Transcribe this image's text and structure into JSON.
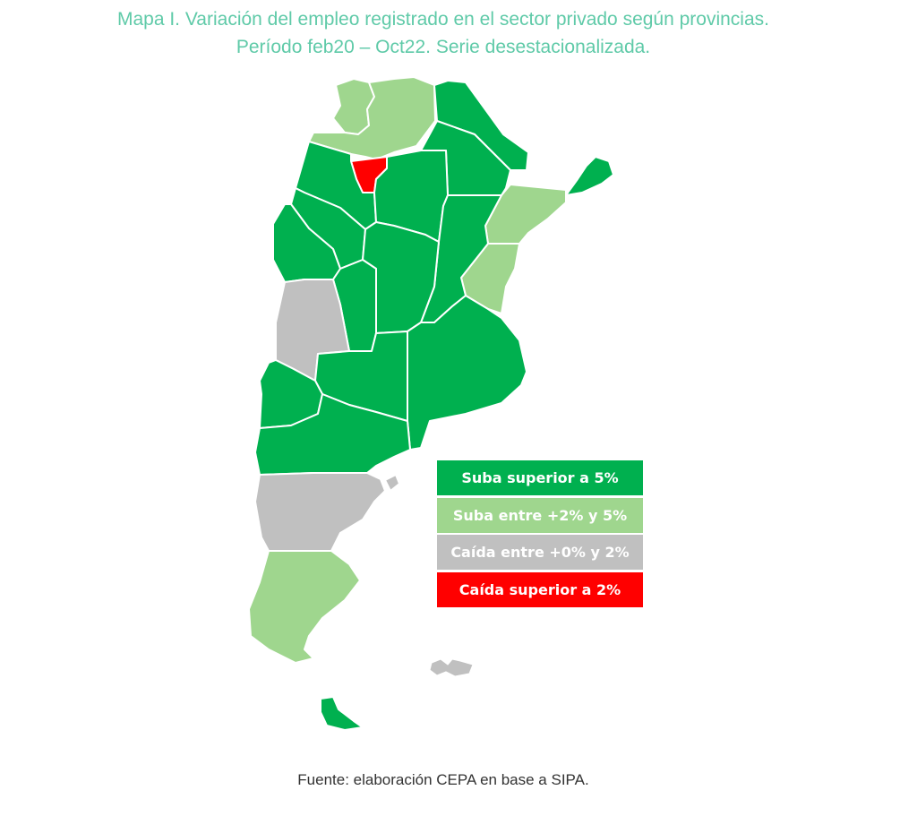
{
  "title": {
    "line1": "Mapa I. Variación del empleo registrado en el sector privado según provincias.",
    "line2": "Período feb20 – Oct22. Serie desestacionalizada."
  },
  "colors": {
    "suba_mayor_5": "#00b04f",
    "suba_2_5": "#9fd68e",
    "caida_0_2": "#c0c0c0",
    "caida_mayor_2": "#ff0000",
    "border": "#ffffff"
  },
  "legend": [
    {
      "label": "Suba superior a 5%",
      "color_key": "suba_mayor_5"
    },
    {
      "label": "Suba entre +2% y 5%",
      "color_key": "suba_2_5"
    },
    {
      "label": "Caída entre +0% y 2%",
      "color_key": "caida_0_2"
    },
    {
      "label": "Caída superior a 2%",
      "color_key": "caida_mayor_2"
    }
  ],
  "regions": {
    "jujuy": "suba_2_5",
    "salta": "suba_2_5",
    "formosa": "suba_mayor_5",
    "chaco": "suba_mayor_5",
    "misiones": "suba_mayor_5",
    "corrientes": "suba_2_5",
    "entre_rios": "suba_2_5",
    "tucuman": "caida_mayor_2",
    "catamarca": "suba_mayor_5",
    "santiago_del_estero": "suba_mayor_5",
    "santa_fe": "suba_mayor_5",
    "la_rioja": "suba_mayor_5",
    "san_juan": "suba_mayor_5",
    "cordoba": "suba_mayor_5",
    "san_luis": "suba_mayor_5",
    "mendoza": "caida_0_2",
    "buenos_aires": "suba_mayor_5",
    "la_pampa": "suba_mayor_5",
    "neuquen": "suba_mayor_5",
    "rio_negro": "suba_mayor_5",
    "chubut": "caida_0_2",
    "santa_cruz": "suba_2_5",
    "tierra_del_fuego": "suba_mayor_5",
    "malvinas": "caida_0_2"
  },
  "source": "Fuente: elaboración CEPA en base a SIPA."
}
